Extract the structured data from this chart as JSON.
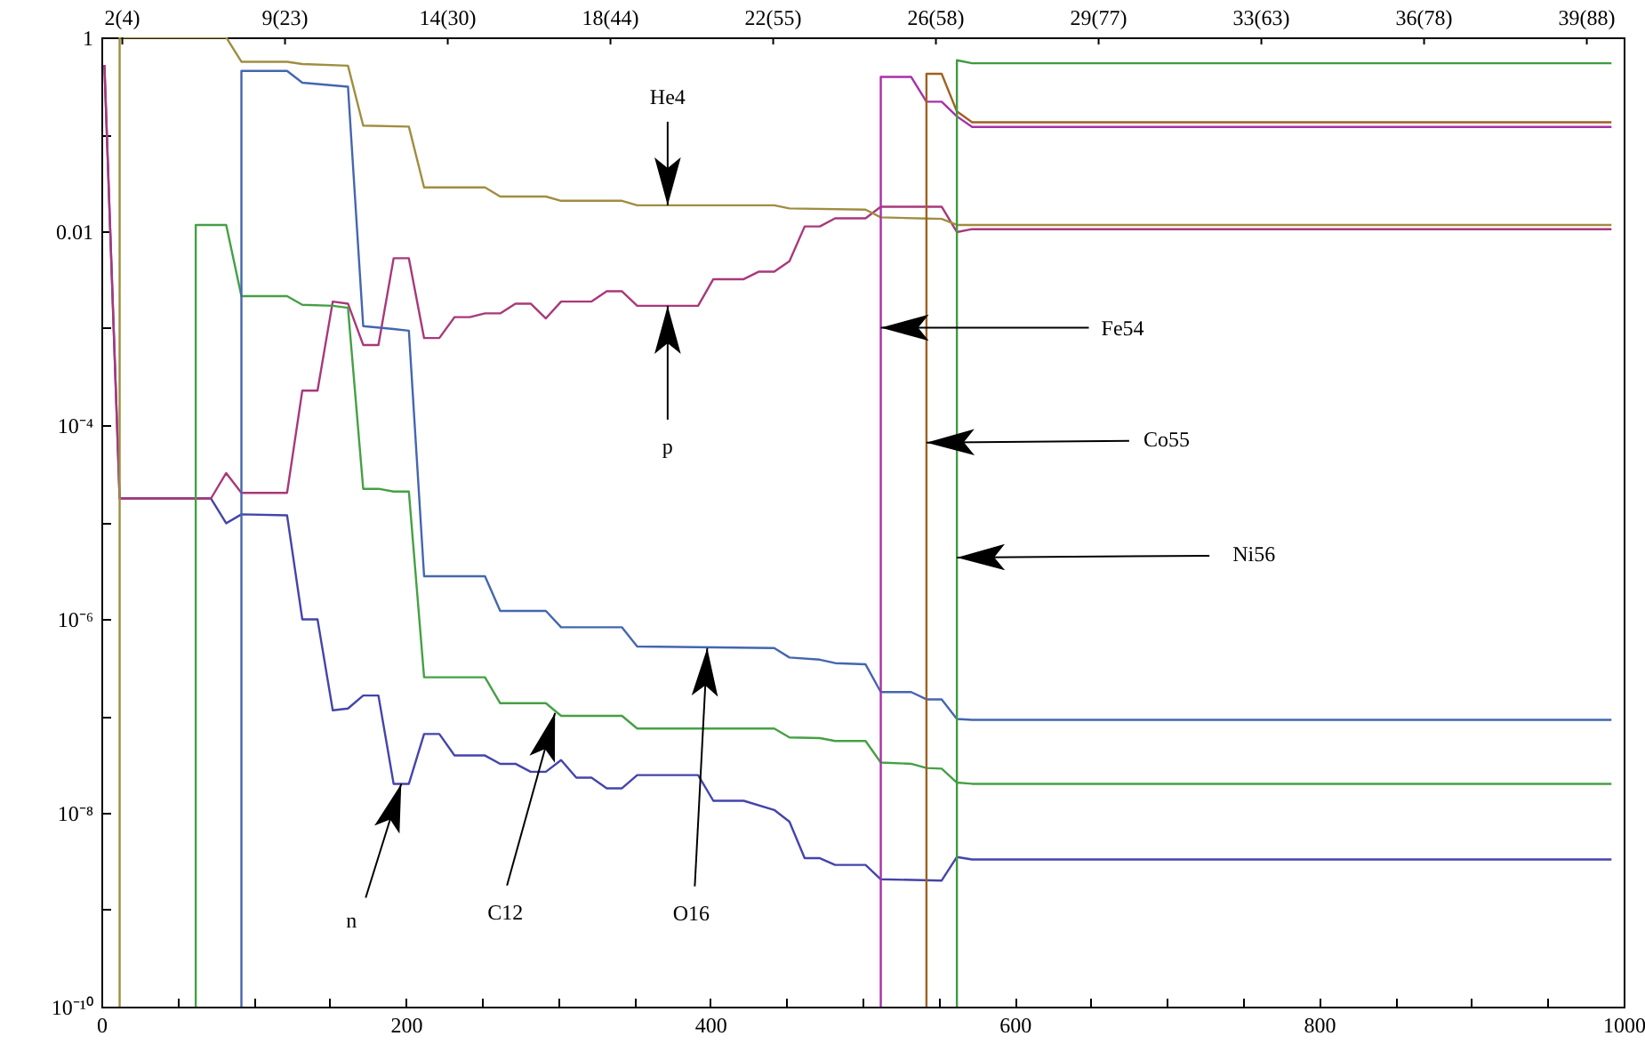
{
  "chart_data": {
    "type": "line",
    "log": "y",
    "xlim": [
      0,
      1000
    ],
    "ylim": [
      1e-10,
      1
    ],
    "xticks": [
      0,
      {
        "value": 50,
        "label": null
      },
      {
        "value": 100,
        "label": null
      },
      {
        "value": 150,
        "label": null
      },
      200,
      {
        "value": 250,
        "label": null
      },
      {
        "value": 300,
        "label": null
      },
      {
        "value": 350,
        "label": null
      },
      400,
      {
        "value": 450,
        "label": null
      },
      {
        "value": 500,
        "label": null
      },
      {
        "value": 550,
        "label": null
      },
      600,
      {
        "value": 650,
        "label": null
      },
      {
        "value": 700,
        "label": null
      },
      {
        "value": 750,
        "label": null
      },
      800,
      {
        "value": 850,
        "label": null
      },
      {
        "value": 900,
        "label": null
      },
      {
        "value": 950,
        "label": null
      },
      1000
    ],
    "yticks": [
      {
        "value": 1e-10,
        "label": "10⁻¹⁰"
      },
      {
        "value": 1e-09,
        "label": null
      },
      {
        "value": 1e-08,
        "label": "10⁻⁸"
      },
      {
        "value": 1e-07,
        "label": null
      },
      {
        "value": 1e-06,
        "label": "10⁻⁶"
      },
      {
        "value": 1e-05,
        "label": null
      },
      {
        "value": 0.0001,
        "label": "10⁻⁴"
      },
      {
        "value": 0.001,
        "label": null
      },
      0.01,
      {
        "value": 0.1,
        "label": null
      },
      1
    ],
    "series": [
      {
        "color": "#4444aa",
        "x": [
          2,
          12,
          72,
          82,
          92,
          122,
          132,
          142,
          152,
          162,
          172,
          182,
          192,
          202,
          212,
          222,
          232,
          252,
          262,
          272,
          282,
          292,
          302,
          312,
          322,
          332,
          342,
          352,
          392,
          402,
          422,
          442,
          452,
          462,
          472,
          482,
          502,
          512,
          552,
          562,
          572,
          992
        ],
        "values": [
          0.52,
          1.75e-05,
          1.75e-05,
          9.7e-06,
          1.2e-05,
          1.17e-05,
          9.9e-07,
          9.9e-07,
          1.14e-07,
          1.19e-07,
          1.62e-07,
          1.62e-07,
          1.99e-08,
          1.99e-08,
          6.5e-08,
          6.5e-08,
          3.9e-08,
          3.9e-08,
          3.2e-08,
          3.2e-08,
          2.65e-08,
          2.65e-08,
          3.5e-08,
          2.3e-08,
          2.3e-08,
          1.79e-08,
          1.79e-08,
          2.45e-08,
          2.45e-08,
          1.33e-08,
          1.33e-08,
          1.07e-08,
          8.1e-09,
          3.4e-09,
          3.4e-09,
          2.9e-09,
          2.9e-09,
          2.06e-09,
          2e-09,
          3.5e-09,
          3.3e-09,
          3.3e-09
        ]
      },
      {
        "color": "#a8387a",
        "x": [
          2,
          12,
          72,
          82,
          92,
          122,
          132,
          142,
          152,
          162,
          172,
          182,
          192,
          202,
          212,
          222,
          232,
          242,
          252,
          262,
          272,
          282,
          292,
          302,
          322,
          332,
          342,
          352,
          392,
          402,
          422,
          432,
          442,
          452,
          462,
          472,
          482,
          502,
          512,
          552,
          562,
          572,
          992
        ],
        "values": [
          0.52,
          1.75e-05,
          1.75e-05,
          3.2e-05,
          2e-05,
          2e-05,
          0.000227,
          0.000227,
          0.00188,
          0.00179,
          0.00067,
          0.00067,
          0.00526,
          0.00526,
          0.00079,
          0.00079,
          0.0013,
          0.0013,
          0.00142,
          0.00142,
          0.00179,
          0.00179,
          0.00126,
          0.00188,
          0.00188,
          0.0024,
          0.0024,
          0.0017,
          0.0017,
          0.0032,
          0.0032,
          0.00383,
          0.00383,
          0.0049,
          0.0112,
          0.0112,
          0.0136,
          0.0136,
          0.0179,
          0.0179,
          0.0098,
          0.0105,
          0.0105
        ]
      },
      {
        "color": "#a08d40",
        "x": [
          12,
          12,
          82,
          92,
          122,
          132,
          162,
          172,
          202,
          212,
          252,
          262,
          292,
          302,
          342,
          352,
          442,
          452,
          502,
          512,
          542,
          552,
          562,
          992
        ],
        "values": [
          1e-10,
          1,
          1,
          0.56,
          0.56,
          0.53,
          0.51,
          0.123,
          0.12,
          0.0283,
          0.0283,
          0.0228,
          0.0228,
          0.0206,
          0.0206,
          0.0185,
          0.0185,
          0.0172,
          0.0167,
          0.0139,
          0.0135,
          0.0134,
          0.0116,
          0.0116
        ]
      },
      {
        "color": "#45a045",
        "x": [
          62,
          62,
          82,
          92,
          122,
          132,
          152,
          162,
          172,
          182,
          192,
          202,
          212,
          252,
          262,
          292,
          302,
          342,
          352,
          442,
          452,
          472,
          482,
          502,
          512,
          532,
          542,
          552,
          562,
          572,
          992
        ],
        "values": [
          1e-10,
          0.0116,
          0.0116,
          0.00214,
          0.00214,
          0.00174,
          0.0017,
          0.00162,
          2.2e-05,
          2.2e-05,
          2.06e-05,
          2.06e-05,
          2.5e-07,
          2.5e-07,
          1.35e-07,
          1.35e-07,
          1e-07,
          1e-07,
          7.4e-08,
          7.4e-08,
          6e-08,
          5.9e-08,
          5.5e-08,
          5.5e-08,
          3.3e-08,
          3.2e-08,
          2.9e-08,
          2.85e-08,
          2.05e-08,
          1.99e-08,
          1.99e-08
        ]
      },
      {
        "color": "#4466b0",
        "x": [
          92,
          92,
          122,
          132,
          152,
          162,
          172,
          192,
          202,
          212,
          252,
          262,
          292,
          302,
          342,
          352,
          442,
          452,
          472,
          482,
          502,
          512,
          532,
          542,
          552,
          562,
          572,
          992
        ],
        "values": [
          1e-10,
          0.45,
          0.45,
          0.34,
          0.32,
          0.31,
          0.00105,
          0.00098,
          0.00094,
          2.76e-06,
          2.76e-06,
          1.21e-06,
          1.21e-06,
          8.2e-07,
          8.2e-07,
          5.2e-07,
          5e-07,
          4e-07,
          3.8e-07,
          3.5e-07,
          3.4e-07,
          1.76e-07,
          1.76e-07,
          1.48e-07,
          1.48e-07,
          9.3e-08,
          9.1e-08,
          9.1e-08
        ]
      },
      {
        "color": "#a830a8",
        "x": [
          512,
          512,
          532,
          542,
          552,
          562,
          572,
          992
        ],
        "values": [
          1e-10,
          0.39,
          0.39,
          0.217,
          0.217,
          0.153,
          0.119,
          0.119
        ]
      },
      {
        "color": "#a06020",
        "x": [
          542,
          542,
          552,
          562,
          572,
          992
        ],
        "values": [
          1e-10,
          0.42,
          0.42,
          0.172,
          0.133,
          0.133
        ]
      },
      {
        "color": "#409a40",
        "x": [
          562,
          562,
          572,
          992
        ],
        "values": [
          1e-10,
          0.58,
          0.54,
          0.54
        ]
      }
    ],
    "annotations": [
      {
        "text": "He4",
        "x": 372,
        "y": 0.0185
      },
      {
        "text": "p",
        "x": 372,
        "y": 0.0017
      },
      {
        "text": "Fe54",
        "x": 512,
        "y": 0.00101
      },
      {
        "text": "Co55",
        "x": 542,
        "y": 6.6e-05
      },
      {
        "text": "Ni56",
        "x": 562,
        "y": 4.3e-06
      },
      {
        "text": "n",
        "x": 197,
        "y": 1.99e-08
      },
      {
        "text": "C12",
        "x": 298,
        "y": 1.07e-07
      },
      {
        "text": "O16",
        "x": 398,
        "y": 5e-07
      },
      "2(4)",
      "9(23)",
      "14(30)",
      "18(44)",
      "22(55)",
      "26(58)",
      "29(77)",
      "33(63)",
      "36(78)",
      "39(88)"
    ]
  }
}
